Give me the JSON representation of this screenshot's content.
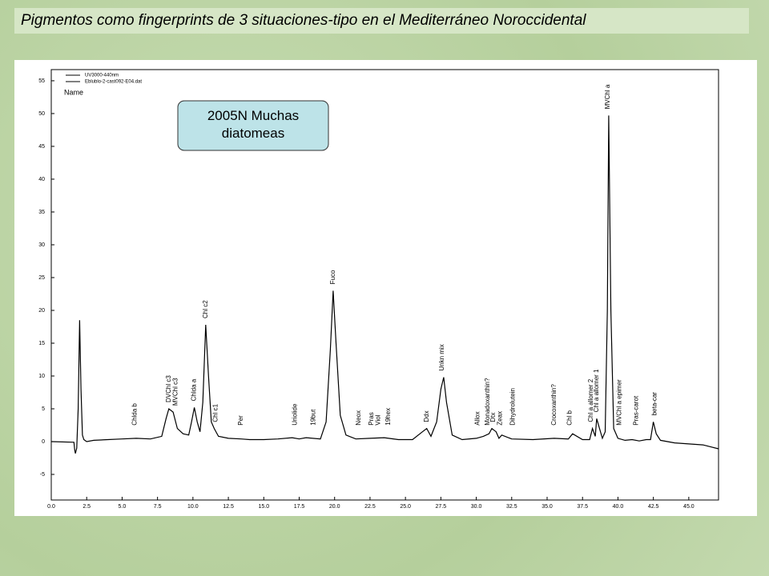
{
  "title": "Pigmentos como fingerprints de 3 situaciones-tipo en el Mediterráneo Noroccidental",
  "chart_data": {
    "type": "line",
    "legend_lines": [
      "UV3000-440nm",
      "Eblublo-2-cast092-E04.dat",
      "Name"
    ],
    "annotation": "2005N Muchas diatomeas",
    "x": [
      0,
      1.6,
      1.65,
      1.7,
      1.8,
      1.9,
      2.0,
      2.1,
      2.2,
      2.3,
      2.5,
      3,
      4,
      5,
      6,
      7,
      7.8,
      8.1,
      8.3,
      8.6,
      8.9,
      9.3,
      9.7,
      9.9,
      10.1,
      10.3,
      10.5,
      10.7,
      10.9,
      11.1,
      11.3,
      11.5,
      11.8,
      12.5,
      13.4,
      14,
      15,
      16,
      17,
      17.5,
      18,
      19,
      19.4,
      19.7,
      19.9,
      20.1,
      20.4,
      20.8,
      21.5,
      22.5,
      23.5,
      24.5,
      25.5,
      26.2,
      26.5,
      26.8,
      27.2,
      27.5,
      27.7,
      27.9,
      28.3,
      29,
      30,
      30.5,
      30.9,
      31.1,
      31.4,
      31.6,
      31.8,
      32.5,
      34,
      35.5,
      36.5,
      36.8,
      37.5,
      38.0,
      38.2,
      38.4,
      38.5,
      38.7,
      38.9,
      39.1,
      39.25,
      39.35,
      39.5,
      39.7,
      40,
      40.5,
      41,
      41.5,
      42,
      42.3,
      42.5,
      42.7,
      43,
      44,
      46,
      47.1
    ],
    "series": [
      {
        "name": "UV3000-440nm",
        "color": "#000000",
        "values": [
          0,
          -0.1,
          -1.2,
          -1.8,
          -1,
          5,
          18.5,
          8,
          1,
          0.3,
          0,
          0.2,
          0.3,
          0.4,
          0.5,
          0.4,
          0.8,
          3.5,
          5,
          4.5,
          2,
          1.2,
          1,
          3,
          5.2,
          3,
          1.5,
          6,
          17.8,
          10,
          3,
          2,
          0.8,
          0.5,
          0.4,
          0.3,
          0.3,
          0.4,
          0.6,
          0.4,
          0.6,
          0.4,
          3,
          14,
          23,
          15,
          4,
          1,
          0.4,
          0.5,
          0.6,
          0.3,
          0.3,
          1.5,
          2,
          0.8,
          3,
          8,
          9.8,
          6,
          1,
          0.3,
          0.5,
          0.8,
          1.2,
          2,
          1.5,
          0.5,
          1,
          0.4,
          0.3,
          0.5,
          0.4,
          1.2,
          0.3,
          0.3,
          2,
          0.8,
          3.5,
          2,
          0.5,
          1.5,
          20,
          49.7,
          20,
          2,
          0.5,
          0.2,
          0.3,
          0.1,
          0.3,
          0.3,
          3,
          1.2,
          0.2,
          -0.2,
          -0.5,
          -1.1
        ]
      }
    ],
    "peak_labels": [
      {
        "text": "Chlda b",
        "x": 5.9
      },
      {
        "text": "DVChl c3",
        "x": 8.3
      },
      {
        "text": "MVChl c3",
        "x": 8.8
      },
      {
        "text": "Chlda a",
        "x": 10.1
      },
      {
        "text": "Chl c2",
        "x": 10.9
      },
      {
        "text": "Chl c1",
        "x": 11.6
      },
      {
        "text": "Per",
        "x": 13.4
      },
      {
        "text": "Uriolide",
        "x": 17.2
      },
      {
        "text": "19but",
        "x": 18.5
      },
      {
        "text": "Fuco",
        "x": 19.9
      },
      {
        "text": "Neox",
        "x": 21.7
      },
      {
        "text": "Pras",
        "x": 22.6
      },
      {
        "text": "Viol",
        "x": 23.1
      },
      {
        "text": "19hex",
        "x": 23.8
      },
      {
        "text": "Ddx",
        "x": 26.5
      },
      {
        "text": "Unkn mix",
        "x": 27.6
      },
      {
        "text": "Allox",
        "x": 30.1
      },
      {
        "text": "Monadoxanthin?",
        "x": 30.8
      },
      {
        "text": "Dtx",
        "x": 31.2
      },
      {
        "text": "Zeax",
        "x": 31.7
      },
      {
        "text": "Dihydrolutein",
        "x": 32.6
      },
      {
        "text": "Crocoxanthin?",
        "x": 35.5
      },
      {
        "text": "Chl b",
        "x": 36.6
      },
      {
        "text": "Chl a allomer 2",
        "x": 38.1
      },
      {
        "text": "Chl a allomer 1",
        "x": 38.5
      },
      {
        "text": "MVChl a",
        "x": 39.3
      },
      {
        "text": "MVChl a epimer",
        "x": 40.1
      },
      {
        "text": "Pras-carot",
        "x": 41.3
      },
      {
        "text": "beta-car",
        "x": 42.6
      }
    ],
    "xlim": [
      0,
      47.1
    ],
    "xticks": [
      {
        "value": 0,
        "label": "0.0"
      },
      {
        "value": 2.5,
        "label": "2.5"
      },
      {
        "value": 5,
        "label": "5.0"
      },
      {
        "value": 7.5,
        "label": "7.5"
      },
      {
        "value": 10,
        "label": "10.0"
      },
      {
        "value": 12.5,
        "label": "12.5"
      },
      {
        "value": 15,
        "label": "15.0"
      },
      {
        "value": 17.5,
        "label": "17.5"
      },
      {
        "value": 20,
        "label": "20.0"
      },
      {
        "value": 22.5,
        "label": "22.5"
      },
      {
        "value": 25,
        "label": "25.0"
      },
      {
        "value": 27.5,
        "label": "27.5"
      },
      {
        "value": 30,
        "label": "30.0"
      },
      {
        "value": 32.5,
        "label": "32.5"
      },
      {
        "value": 35,
        "label": "35.0"
      },
      {
        "value": 37.5,
        "label": "37.5"
      },
      {
        "value": 40,
        "label": "40.0"
      },
      {
        "value": 42.5,
        "label": "42.5"
      },
      {
        "value": 45,
        "label": "45.0"
      }
    ],
    "ylim": [
      -8.9,
      56.7
    ],
    "yticks": [
      -5,
      0,
      5,
      10,
      15,
      20,
      25,
      30,
      35,
      40,
      45,
      50,
      55
    ]
  }
}
